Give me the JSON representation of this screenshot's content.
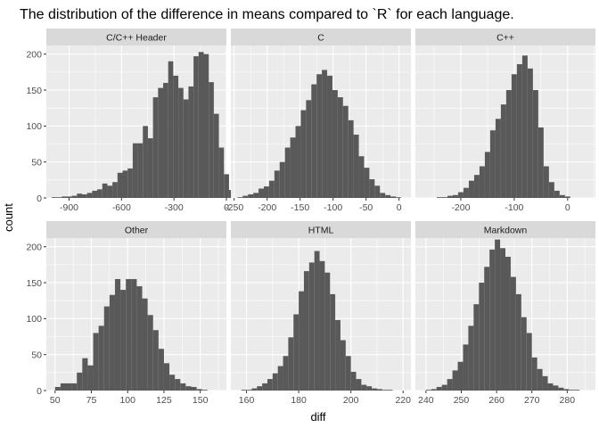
{
  "chart_data": {
    "type": "histogram",
    "title": "The distribution of the difference in means compared to `R` for each language.",
    "xlabel": "diff",
    "ylabel": "count",
    "grid": true,
    "legend": "none",
    "bar_color": "#595959",
    "panel_background": "#ebebeb",
    "strip_background": "#d9d9d9",
    "y_ticks": [
      0,
      50,
      100,
      150,
      200
    ],
    "ylim": [
      0,
      212
    ],
    "panels": [
      {
        "name": "C/C++ Header",
        "xlim": [
          -1030,
          0
        ],
        "x_ticks": [
          -900,
          -600,
          -300,
          0
        ],
        "x_tick_labels": [
          "-900",
          "-600",
          "-300",
          "0"
        ],
        "bin_start": -1000,
        "bin_width": 29,
        "counts": [
          1,
          1,
          2,
          2,
          3,
          6,
          5,
          7,
          10,
          12,
          20,
          17,
          22,
          35,
          38,
          41,
          76,
          76,
          100,
          83,
          140,
          153,
          160,
          190,
          170,
          153,
          137,
          155,
          197,
          203,
          200,
          161,
          117,
          70,
          33,
          11
        ]
      },
      {
        "name": "C",
        "xlim": [
          -255,
          18
        ],
        "x_ticks": [
          -250,
          -200,
          -150,
          -100,
          -50,
          0
        ],
        "x_tick_labels": [
          "-250",
          "-200",
          "-150",
          "-100",
          "-50",
          "0"
        ],
        "bin_start": -245,
        "bin_width": 8,
        "counts": [
          1,
          3,
          5,
          7,
          13,
          16,
          24,
          38,
          50,
          70,
          84,
          100,
          122,
          136,
          158,
          172,
          178,
          170,
          150,
          140,
          128,
          108,
          88,
          58,
          42,
          26,
          17,
          7,
          4,
          2,
          1
        ]
      },
      {
        "name": "C++",
        "xlim": [
          -285,
          52
        ],
        "x_ticks": [
          -200,
          -100,
          0
        ],
        "x_tick_labels": [
          "-200",
          "-100",
          "0"
        ],
        "bin_start": -245,
        "bin_width": 10,
        "counts": [
          1,
          1,
          3,
          4,
          8,
          14,
          24,
          32,
          44,
          64,
          94,
          110,
          130,
          150,
          172,
          186,
          198,
          180,
          150,
          98,
          44,
          22,
          10,
          4,
          2
        ]
      },
      {
        "name": "Other",
        "xlim": [
          44,
          168
        ],
        "x_ticks": [
          50,
          75,
          100,
          125,
          150
        ],
        "x_tick_labels": [
          "50",
          "75",
          "100",
          "125",
          "150"
        ],
        "bin_start": 50,
        "bin_width": 3.75,
        "counts": [
          5,
          10,
          10,
          10,
          25,
          45,
          35,
          80,
          90,
          117,
          133,
          155,
          140,
          155,
          155,
          145,
          128,
          105,
          84,
          58,
          38,
          22,
          16,
          10,
          6,
          5,
          2,
          1
        ]
      },
      {
        "name": "HTML",
        "xlim": [
          154,
          223
        ],
        "x_ticks": [
          160,
          180,
          200,
          220
        ],
        "x_tick_labels": [
          "160",
          "180",
          "200",
          "220"
        ],
        "bin_start": 158,
        "bin_width": 2,
        "counts": [
          1,
          1,
          3,
          6,
          10,
          16,
          24,
          34,
          48,
          74,
          106,
          138,
          166,
          178,
          194,
          180,
          164,
          134,
          98,
          70,
          48,
          26,
          16,
          8,
          6,
          3,
          2,
          1,
          1
        ]
      },
      {
        "name": "Markdown",
        "xlim": [
          237,
          288
        ],
        "x_ticks": [
          240,
          250,
          260,
          270,
          280
        ],
        "x_tick_labels": [
          "240",
          "250",
          "260",
          "270",
          "280"
        ],
        "bin_start": 240,
        "bin_width": 1.5,
        "counts": [
          1,
          2,
          5,
          8,
          16,
          28,
          40,
          64,
          90,
          120,
          150,
          172,
          196,
          210,
          198,
          186,
          158,
          134,
          102,
          80,
          46,
          30,
          20,
          10,
          7,
          4,
          2,
          1,
          1
        ]
      }
    ]
  }
}
